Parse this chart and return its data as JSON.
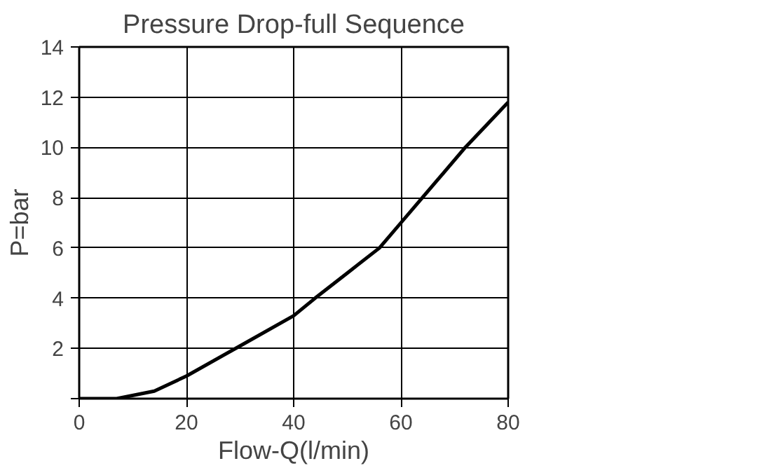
{
  "chart_data": {
    "type": "line",
    "title": "Pressure Drop-full Sequence",
    "xlabel": "Flow-Q(l/min)",
    "ylabel": "P=bar",
    "x": [
      0,
      7,
      14,
      20,
      30,
      40,
      44,
      50,
      56,
      60,
      64,
      68,
      72,
      76,
      80
    ],
    "series": [
      {
        "color": "#000000",
        "values": [
          0,
          0,
          0.3,
          0.9,
          2.1,
          3.3,
          4,
          5,
          6,
          7,
          8,
          9,
          10,
          10.9,
          11.8
        ]
      }
    ],
    "xlim": [
      0,
      80
    ],
    "ylim": [
      0,
      14
    ],
    "xticks": [
      0,
      20,
      40,
      60,
      80
    ],
    "yticks": [
      {
        "value": 0,
        "label": null
      },
      2,
      4,
      6,
      8,
      10,
      12,
      14
    ],
    "grid": true,
    "marker": "none",
    "line_style": "solid"
  }
}
